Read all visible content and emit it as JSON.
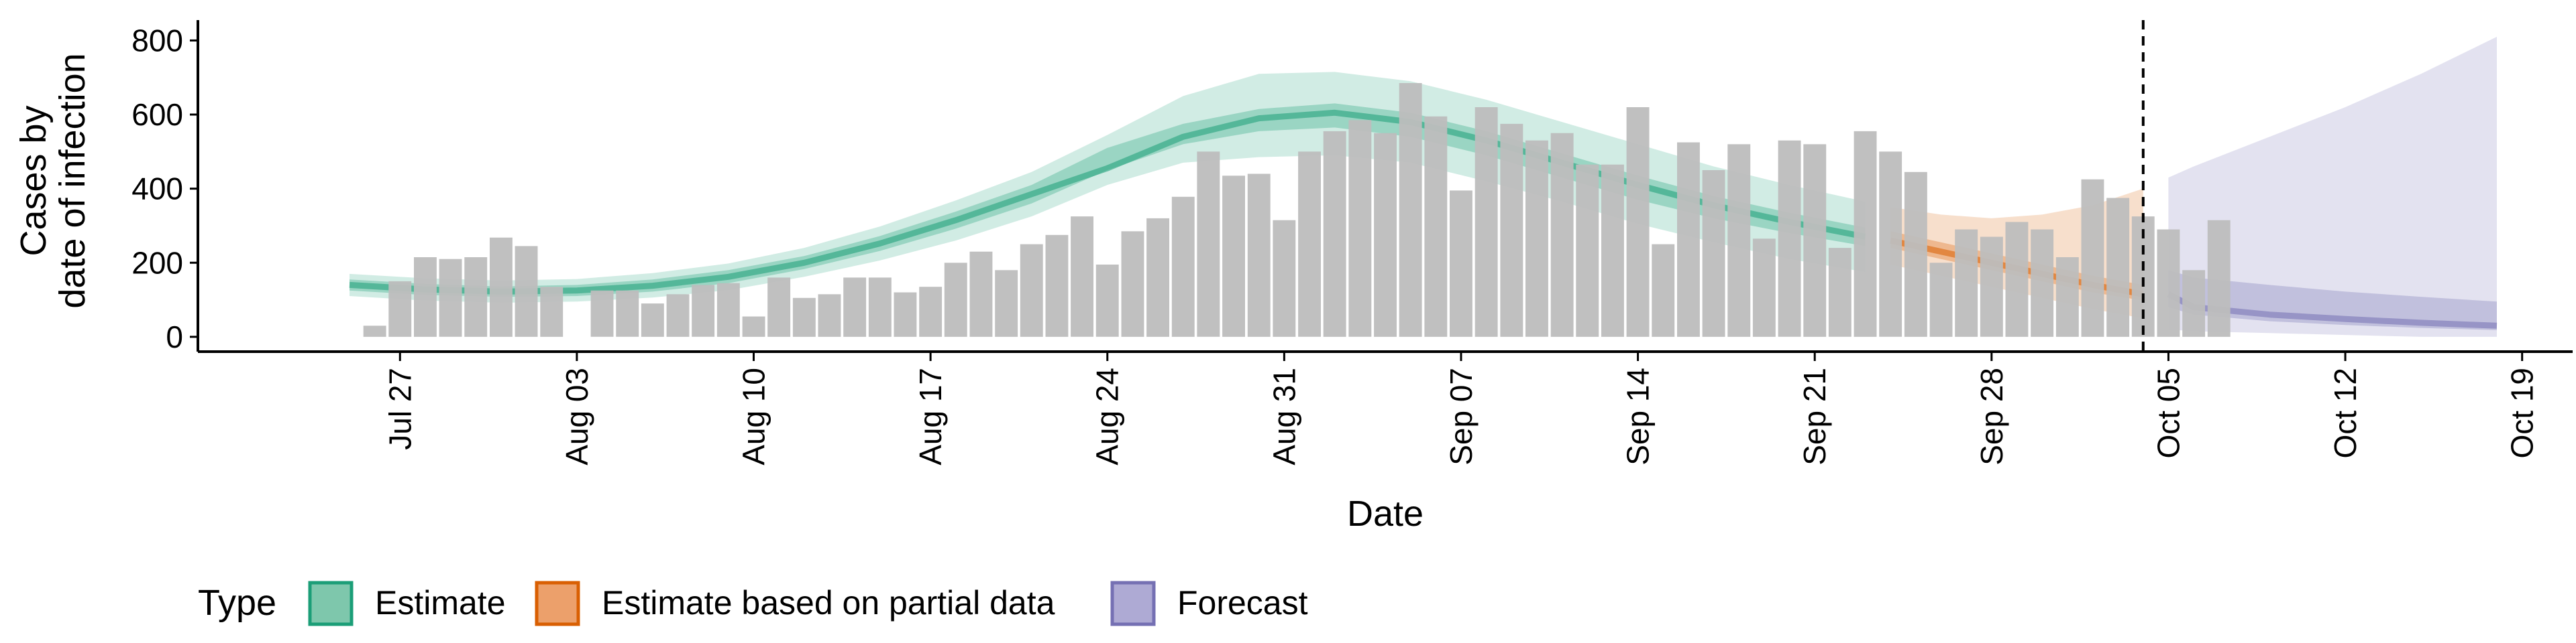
{
  "chart_data": {
    "type": "bar",
    "xlabel": "Date",
    "ylabel_lines": [
      "Cases by",
      "date of infection"
    ],
    "ylim": [
      -40,
      855
    ],
    "yticks": [
      0,
      200,
      400,
      600,
      800
    ],
    "xlim": [
      "2020-07-19",
      "2020-10-21"
    ],
    "xticks": [
      {
        "date": "2020-07-27",
        "label": "Jul 27"
      },
      {
        "date": "2020-08-03",
        "label": "Aug 03"
      },
      {
        "date": "2020-08-10",
        "label": "Aug 10"
      },
      {
        "date": "2020-08-17",
        "label": "Aug 17"
      },
      {
        "date": "2020-08-24",
        "label": "Aug 24"
      },
      {
        "date": "2020-08-31",
        "label": "Aug 31"
      },
      {
        "date": "2020-09-07",
        "label": "Sep 07"
      },
      {
        "date": "2020-09-14",
        "label": "Sep 14"
      },
      {
        "date": "2020-09-21",
        "label": "Sep 21"
      },
      {
        "date": "2020-09-28",
        "label": "Sep 28"
      },
      {
        "date": "2020-10-05",
        "label": "Oct 05"
      },
      {
        "date": "2020-10-12",
        "label": "Oct 12"
      },
      {
        "date": "2020-10-19",
        "label": "Oct 19"
      }
    ],
    "forecast_line_date": "2020-10-04",
    "bars": {
      "start": "2020-07-26",
      "values": [
        30,
        150,
        215,
        210,
        215,
        268,
        245,
        135,
        0,
        125,
        125,
        90,
        115,
        140,
        145,
        55,
        160,
        105,
        115,
        160,
        160,
        120,
        135,
        200,
        230,
        180,
        250,
        275,
        325,
        195,
        285,
        320,
        378,
        500,
        435,
        440,
        315,
        500,
        555,
        585,
        550,
        685,
        595,
        395,
        620,
        575,
        530,
        550,
        465,
        465,
        620,
        250,
        525,
        450,
        520,
        265,
        530,
        520,
        240,
        555,
        500,
        445,
        200,
        290,
        270,
        310,
        290,
        215,
        425,
        375,
        325,
        290,
        180,
        315
      ]
    },
    "series": [
      {
        "name": "Estimate",
        "color": "#1b9e77",
        "dates": [
          "2020-07-25",
          "2020-07-28",
          "2020-07-31",
          "2020-08-03",
          "2020-08-06",
          "2020-08-09",
          "2020-08-12",
          "2020-08-15",
          "2020-08-18",
          "2020-08-21",
          "2020-08-24",
          "2020-08-27",
          "2020-08-30",
          "2020-09-02",
          "2020-09-05",
          "2020-09-08",
          "2020-09-11",
          "2020-09-14",
          "2020-09-17",
          "2020-09-20",
          "2020-09-23"
        ],
        "median": [
          140,
          128,
          122,
          125,
          138,
          162,
          200,
          252,
          315,
          385,
          455,
          540,
          590,
          605,
          580,
          530,
          470,
          410,
          355,
          310,
          270
        ],
        "lower50": [
          125,
          113,
          108,
          110,
          122,
          145,
          183,
          232,
          292,
          360,
          450,
          520,
          555,
          565,
          540,
          490,
          430,
          370,
          320,
          280,
          245
        ],
        "upper50": [
          155,
          143,
          136,
          140,
          155,
          180,
          218,
          272,
          338,
          410,
          510,
          575,
          615,
          630,
          605,
          555,
          495,
          435,
          380,
          335,
          295
        ],
        "lower90": [
          110,
          98,
          92,
          95,
          106,
          126,
          162,
          206,
          260,
          325,
          410,
          470,
          485,
          490,
          470,
          420,
          365,
          305,
          255,
          210,
          175
        ],
        "upper90": [
          170,
          158,
          152,
          156,
          172,
          198,
          240,
          298,
          368,
          445,
          545,
          650,
          710,
          715,
          690,
          640,
          580,
          520,
          460,
          410,
          365
        ]
      },
      {
        "name": "Estimate based on partial data",
        "color": "#d95f02",
        "dates": [
          "2020-09-24",
          "2020-09-26",
          "2020-09-28",
          "2020-09-30",
          "2020-10-02",
          "2020-10-04"
        ],
        "median": [
          260,
          230,
          200,
          170,
          140,
          115
        ],
        "lower50": [
          240,
          210,
          180,
          150,
          120,
          98
        ],
        "upper50": [
          285,
          255,
          225,
          195,
          165,
          140
        ],
        "lower90": [
          195,
          165,
          135,
          105,
          75,
          50
        ],
        "upper90": [
          350,
          330,
          320,
          330,
          355,
          400
        ]
      },
      {
        "name": "Forecast",
        "color": "#7570b3",
        "dates": [
          "2020-10-05",
          "2020-10-06",
          "2020-10-09",
          "2020-10-12",
          "2020-10-15",
          "2020-10-18"
        ],
        "median": [
          115,
          80,
          60,
          48,
          38,
          30
        ],
        "lower50": [
          80,
          60,
          42,
          32,
          24,
          18
        ],
        "upper50": [
          180,
          160,
          140,
          122,
          108,
          95
        ],
        "lower90": [
          20,
          15,
          10,
          5,
          0,
          0
        ],
        "upper90": [
          430,
          460,
          540,
          620,
          710,
          810
        ]
      }
    ],
    "legend": {
      "title": "Type",
      "position": "bottom",
      "entries": [
        {
          "label": "Estimate",
          "fill": "#7ec7ac",
          "stroke": "#1b9e77"
        },
        {
          "label": "Estimate based on partial data",
          "fill": "#eca06b",
          "stroke": "#d95f02"
        },
        {
          "label": "Forecast",
          "fill": "#aeaad4",
          "stroke": "#7570b3"
        }
      ]
    },
    "bar_color": "#bdbdbd"
  }
}
